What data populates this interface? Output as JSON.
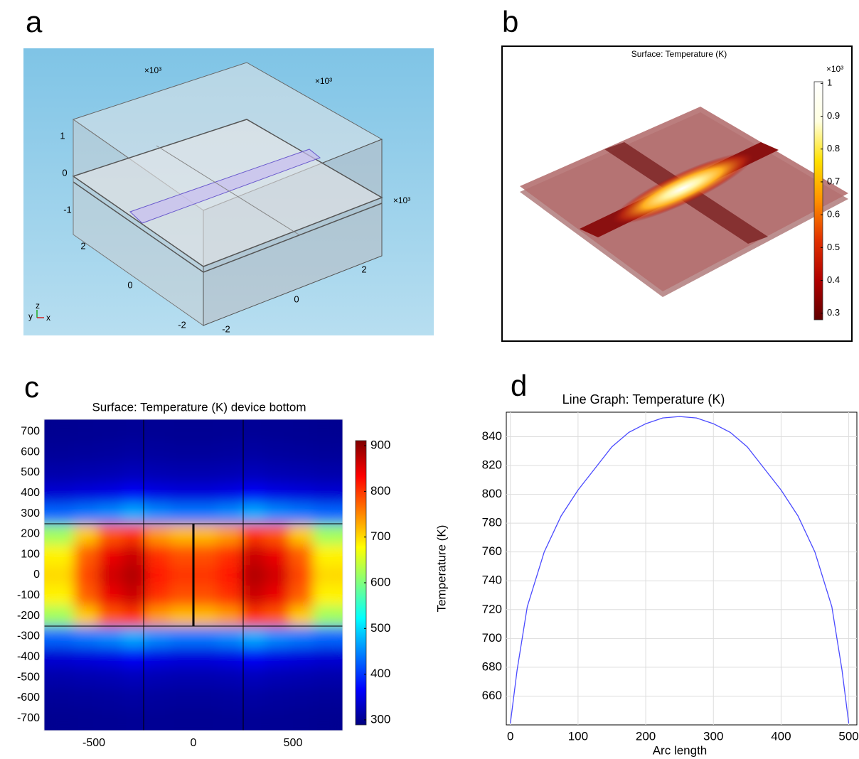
{
  "panel_labels": [
    "a",
    "b",
    "c",
    "d"
  ],
  "chart_data": [
    {
      "type": "geometry3d",
      "multipliers": [
        "×10³",
        "×10³",
        "×10³"
      ],
      "zticks": [
        1,
        0,
        -1
      ],
      "yticks": [
        2,
        0,
        -2
      ],
      "xticks": [
        2,
        0,
        -2
      ],
      "axis_labels": [
        "y",
        "z",
        "x"
      ]
    },
    {
      "type": "surface3d",
      "title": "Surface: Temperature (K)",
      "colorbar": {
        "multiplier": "×10³",
        "lim": [
          0.28,
          1.005
        ],
        "ticks": [
          0.3,
          0.4,
          0.5,
          0.6,
          0.7,
          0.8,
          0.9,
          1
        ],
        "colormap": [
          "#600000",
          "#b00000",
          "#e03000",
          "#ff9000",
          "#ffe000",
          "#ffffe0",
          "#ffffff"
        ]
      }
    },
    {
      "type": "heatmap",
      "title": "Surface: Temperature (K) device bottom",
      "x": [
        -660,
        -540,
        -420,
        -300,
        -180,
        -60,
        60,
        180,
        300,
        420,
        540,
        660
      ],
      "y": [
        -700,
        -600,
        -500,
        -400,
        -300,
        -200,
        -100,
        0,
        100,
        200,
        300,
        400,
        500,
        600,
        700
      ],
      "z": [
        [
          300,
          301,
          302,
          303,
          302,
          301,
          301,
          302,
          303,
          302,
          301,
          300
        ],
        [
          305,
          306,
          308,
          310,
          308,
          306,
          306,
          308,
          310,
          308,
          306,
          305
        ],
        [
          315,
          318,
          320,
          325,
          320,
          318,
          318,
          320,
          325,
          320,
          318,
          315
        ],
        [
          340,
          345,
          350,
          360,
          350,
          345,
          345,
          350,
          360,
          350,
          345,
          340
        ],
        [
          430,
          440,
          450,
          470,
          450,
          440,
          440,
          450,
          470,
          450,
          440,
          430
        ],
        [
          620,
          710,
          780,
          800,
          740,
          720,
          720,
          740,
          800,
          780,
          710,
          620
        ],
        [
          685,
          775,
          845,
          865,
          805,
          785,
          785,
          805,
          865,
          845,
          775,
          685
        ],
        [
          700,
          790,
          860,
          880,
          820,
          800,
          800,
          820,
          880,
          860,
          790,
          700
        ],
        [
          685,
          775,
          845,
          865,
          805,
          785,
          785,
          805,
          865,
          845,
          775,
          685
        ],
        [
          620,
          710,
          780,
          800,
          740,
          720,
          720,
          740,
          800,
          780,
          710,
          620
        ],
        [
          430,
          440,
          450,
          470,
          450,
          440,
          440,
          450,
          470,
          450,
          440,
          430
        ],
        [
          340,
          345,
          350,
          360,
          350,
          345,
          345,
          350,
          360,
          350,
          345,
          340
        ],
        [
          315,
          318,
          320,
          325,
          320,
          318,
          318,
          320,
          325,
          320,
          318,
          315
        ],
        [
          305,
          306,
          308,
          310,
          308,
          306,
          306,
          308,
          310,
          308,
          306,
          305
        ],
        [
          300,
          301,
          302,
          303,
          302,
          301,
          301,
          302,
          303,
          302,
          301,
          300
        ]
      ],
      "xlim": [
        -750,
        750
      ],
      "ylim": [
        -760,
        760
      ],
      "xticks": [
        -500,
        0,
        500
      ],
      "yticks": [
        -700,
        -600,
        -500,
        -400,
        -300,
        -200,
        -100,
        0,
        100,
        200,
        300,
        400,
        500,
        600,
        700
      ],
      "outlines": [
        {
          "x": [
            -250,
            -250
          ],
          "y": [
            -760,
            760
          ],
          "width": 1
        },
        {
          "x": [
            250,
            250
          ],
          "y": [
            -760,
            760
          ],
          "width": 1
        },
        {
          "x": [
            -750,
            750
          ],
          "y": [
            250,
            250
          ],
          "width": 1
        },
        {
          "x": [
            -750,
            750
          ],
          "y": [
            -250,
            -250
          ],
          "width": 1
        },
        {
          "x": [
            0,
            0
          ],
          "y": [
            -250,
            250
          ],
          "width": 3
        }
      ],
      "colorbar": {
        "lim": [
          289,
          911
        ],
        "ticks": [
          300,
          400,
          500,
          600,
          700,
          800,
          900
        ],
        "colormap": [
          "#00007f",
          "#0000ff",
          "#007fff",
          "#00ffff",
          "#7fff7f",
          "#ffff00",
          "#ff7f00",
          "#ff0000",
          "#7f0000"
        ]
      }
    },
    {
      "type": "line",
      "title": "Line Graph: Temperature (K)",
      "x_label": "Arc length",
      "y_label": "Temperature (K)",
      "x": [
        0,
        10,
        25,
        50,
        75,
        100,
        125,
        150,
        175,
        200,
        225,
        250,
        275,
        300,
        325,
        350,
        375,
        400,
        425,
        450,
        475,
        490,
        500
      ],
      "values": [
        641,
        678,
        722,
        760,
        785,
        803,
        818,
        833,
        843,
        849,
        853,
        854,
        853,
        849,
        843,
        833,
        818,
        803,
        785,
        760,
        722,
        678,
        641
      ],
      "color": "#4b4bff",
      "xlim": [
        -6,
        512
      ],
      "ylim": [
        640,
        857
      ],
      "xticks": [
        0,
        100,
        200,
        300,
        400,
        500
      ],
      "yticks": [
        660,
        680,
        700,
        720,
        740,
        760,
        780,
        800,
        820,
        840
      ],
      "grid": true
    }
  ]
}
